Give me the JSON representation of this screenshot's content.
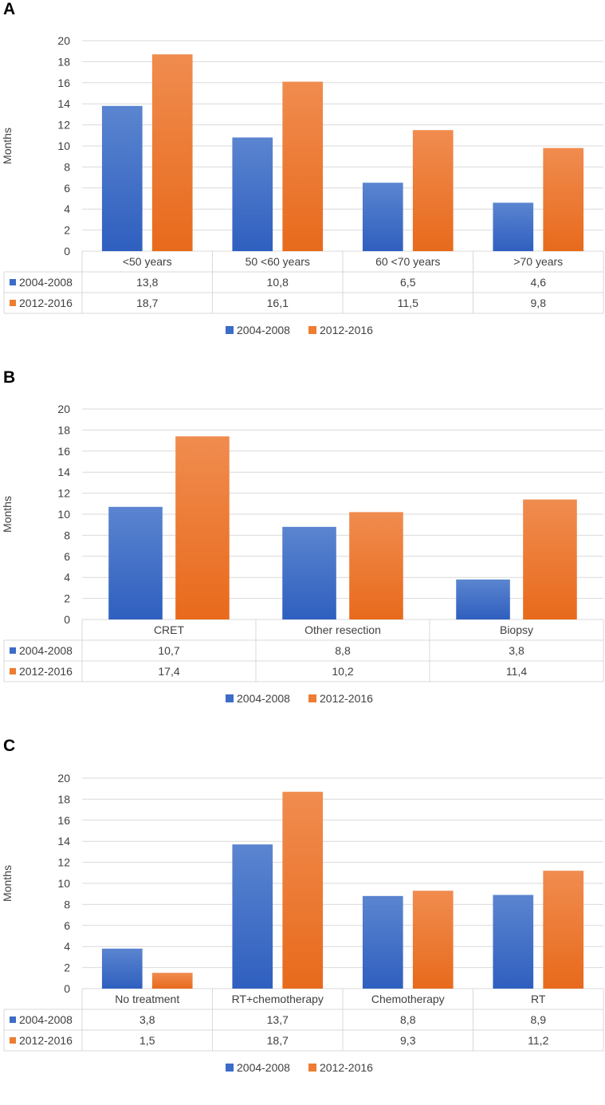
{
  "colors": {
    "series_a": "#3b6cc7",
    "series_b": "#ed7d31",
    "grid": "#d9d9d9",
    "text": "#404040"
  },
  "chart_data": [
    {
      "panel_label": "A",
      "type": "bar",
      "ylabel": "Months",
      "ylim": [
        0,
        20
      ],
      "yticks": [
        "0",
        "2",
        "4",
        "6",
        "8",
        "10",
        "12",
        "14",
        "16",
        "18",
        "20"
      ],
      "categories": [
        "<50 years",
        "50 <60 years",
        "60 <70 years",
        ">70 years"
      ],
      "series": [
        {
          "name": "2004-2008",
          "values": [
            13.8,
            10.8,
            6.5,
            4.6
          ],
          "labels": [
            "13,8",
            "10,8",
            "6,5",
            "4,6"
          ]
        },
        {
          "name": "2012-2016",
          "values": [
            18.7,
            16.1,
            11.5,
            9.8
          ],
          "labels": [
            "18,7",
            "16,1",
            "11,5",
            "9,8"
          ]
        }
      ],
      "legend": [
        "2004-2008",
        "2012-2016"
      ]
    },
    {
      "panel_label": "B",
      "type": "bar",
      "ylabel": "Months",
      "ylim": [
        0,
        20
      ],
      "yticks": [
        "0",
        "2",
        "4",
        "6",
        "8",
        "10",
        "12",
        "14",
        "16",
        "18",
        "20"
      ],
      "categories": [
        "CRET",
        "Other resection",
        "Biopsy"
      ],
      "series": [
        {
          "name": "2004-2008",
          "values": [
            10.7,
            8.8,
            3.8
          ],
          "labels": [
            "10,7",
            "8,8",
            "3,8"
          ]
        },
        {
          "name": "2012-2016",
          "values": [
            17.4,
            10.2,
            11.4
          ],
          "labels": [
            "17,4",
            "10,2",
            "11,4"
          ]
        }
      ],
      "legend": [
        "2004-2008",
        "2012-2016"
      ]
    },
    {
      "panel_label": "C",
      "type": "bar",
      "ylabel": "Months",
      "ylim": [
        0,
        20
      ],
      "yticks": [
        "0",
        "2",
        "4",
        "6",
        "8",
        "10",
        "12",
        "14",
        "16",
        "18",
        "20"
      ],
      "categories": [
        "No treatment",
        "RT+chemotherapy",
        "Chemotherapy",
        "RT"
      ],
      "series": [
        {
          "name": "2004-2008",
          "values": [
            3.8,
            13.7,
            8.8,
            8.9
          ],
          "labels": [
            "3,8",
            "13,7",
            "8,8",
            "8,9"
          ]
        },
        {
          "name": "2012-2016",
          "values": [
            1.5,
            18.7,
            9.3,
            11.2
          ],
          "labels": [
            "1,5",
            "18,7",
            "9,3",
            "11,2"
          ]
        }
      ],
      "legend": [
        "2004-2008",
        "2012-2016"
      ]
    }
  ]
}
